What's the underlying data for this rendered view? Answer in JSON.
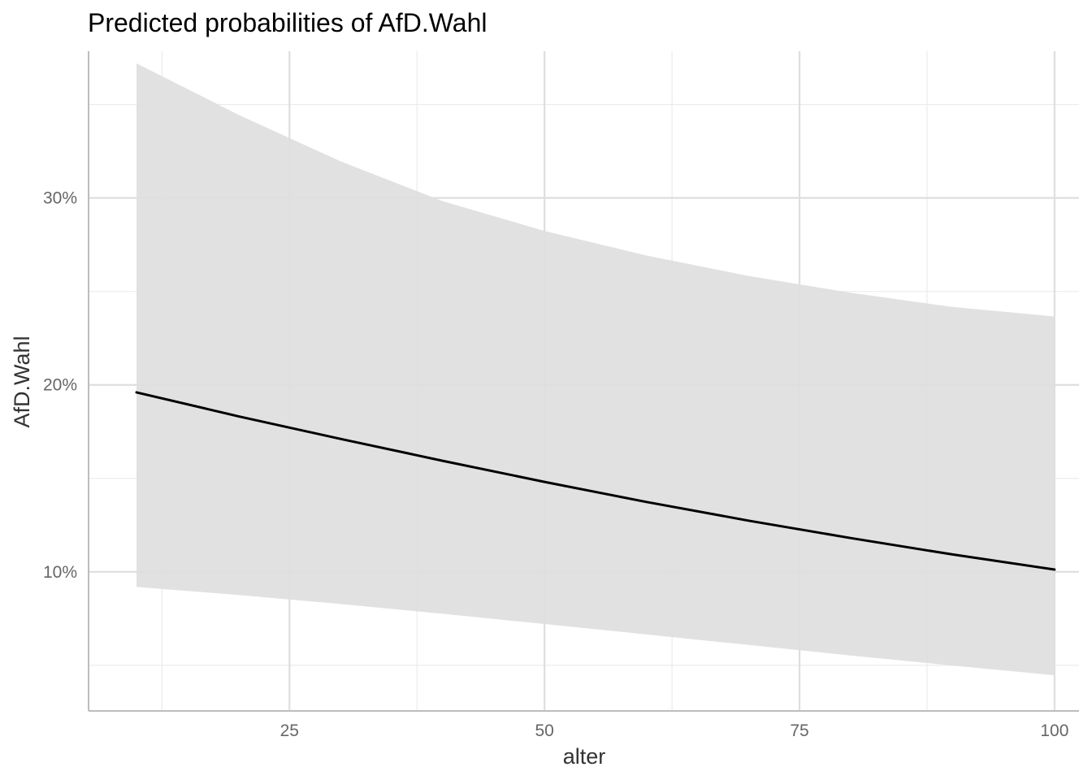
{
  "chart_data": {
    "type": "line",
    "title": "Predicted probabilities of AfD.Wahl",
    "xlabel": "alter",
    "ylabel": "AfD.Wahl",
    "xlim": [
      5.3,
      102.4
    ],
    "ylim": [
      0.0256,
      0.3785
    ],
    "x_ticks": [
      25,
      50,
      75,
      100
    ],
    "x_tick_labels": [
      "25",
      "50",
      "75",
      "100"
    ],
    "x_minor_ticks": [
      12.5,
      37.5,
      62.5,
      87.5
    ],
    "y_ticks": [
      0.1,
      0.2,
      0.3
    ],
    "y_tick_labels": [
      "10%",
      "20%",
      "30%"
    ],
    "y_minor_ticks": [
      0.05,
      0.15,
      0.25,
      0.35
    ],
    "grid": true,
    "legend": "none",
    "series": [
      {
        "x": [
          10,
          20,
          30,
          40,
          50,
          60,
          70,
          80,
          90,
          100
        ],
        "values": [
          0.196,
          0.1832,
          0.1711,
          0.1594,
          0.1481,
          0.1374,
          0.1274,
          0.1181,
          0.1093,
          0.1012
        ],
        "ci_lower": [
          0.0919,
          0.0876,
          0.0828,
          0.0776,
          0.0721,
          0.0665,
          0.0609,
          0.0553,
          0.0499,
          0.0447
        ],
        "ci_upper": [
          0.372,
          0.3445,
          0.3196,
          0.2983,
          0.2823,
          0.2692,
          0.2583,
          0.2493,
          0.2417,
          0.2366
        ],
        "line_color": "#000000",
        "ribbon_color": "#dedede"
      }
    ]
  }
}
